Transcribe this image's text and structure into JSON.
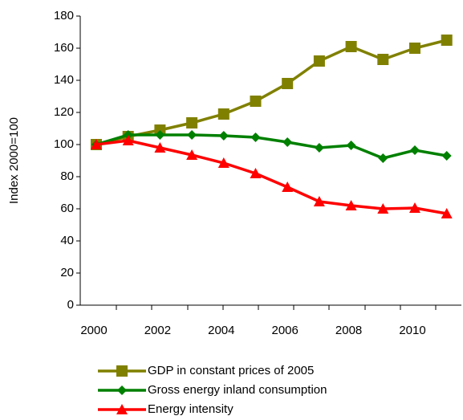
{
  "chart_data": {
    "type": "line",
    "y_label": "Index 2000=100",
    "categories": [
      "2000",
      null,
      "2002",
      null,
      "2004",
      null,
      "2006",
      null,
      "2008",
      null,
      "2010",
      null
    ],
    "series": [
      {
        "name": "GDP in constant prices of 2005",
        "color": "#808000",
        "marker": "square",
        "values": [
          100,
          105,
          109,
          113.5,
          119,
          127,
          138,
          152,
          161,
          153,
          160,
          165
        ]
      },
      {
        "name": "Gross energy inland consumption",
        "color": "#008000",
        "marker": "diamond",
        "values": [
          100,
          106,
          106,
          106,
          105.5,
          104.5,
          101.5,
          98,
          99.5,
          91.5,
          96.5,
          93
        ]
      },
      {
        "name": "Energy intensity",
        "color": "#ff0000",
        "marker": "triangle",
        "values": [
          100,
          102.5,
          98,
          93.5,
          88.5,
          82,
          73.5,
          64.5,
          62,
          60,
          60.5,
          57
        ]
      }
    ],
    "ylim": [
      0,
      180
    ],
    "yticks": [
      0,
      20,
      40,
      60,
      80,
      100,
      120,
      140,
      160,
      180
    ]
  }
}
